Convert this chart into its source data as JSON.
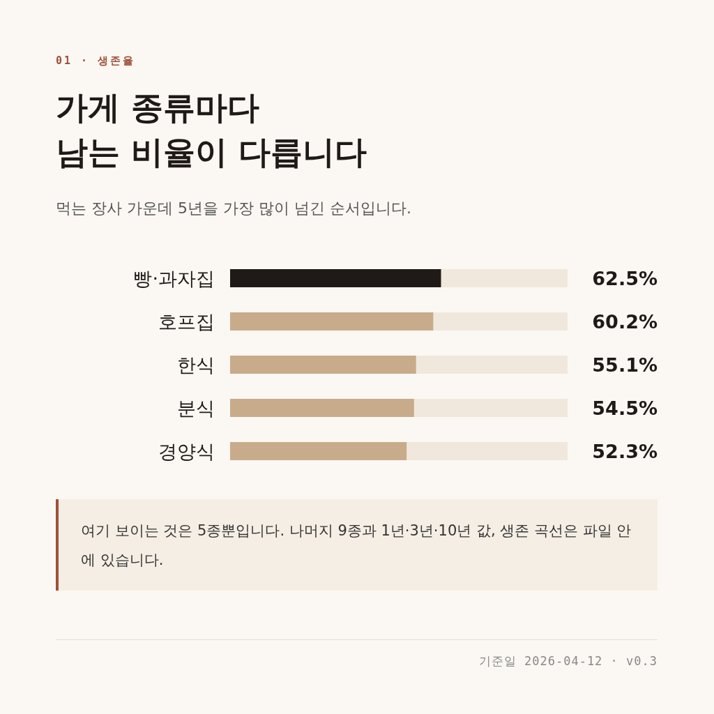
{
  "chart_data": {
    "type": "bar",
    "orientation": "horizontal",
    "title": "가게 종류마다\n남는 비율이 다릅니다",
    "subtitle": "먹는 장사 가운데 5년을 가장 많이 넘긴 순서입니다.",
    "categories": [
      "빵·과자집",
      "호프집",
      "한식",
      "분식",
      "경양식"
    ],
    "values": [
      62.5,
      60.2,
      55.1,
      54.5,
      52.3
    ],
    "value_labels": [
      "62.5%",
      "60.2%",
      "55.1%",
      "54.5%",
      "52.3%"
    ],
    "colors": [
      "#1f1a17",
      "#c8ab8a",
      "#c8ab8a",
      "#c8ab8a",
      "#c8ab8a"
    ],
    "xlim": [
      0,
      100
    ],
    "annotations": [
      "01 · 생존율",
      "여기 보이는 것은 5종뿐입니다. 나머지 9종과 1년·3년·10년 값, 생존 곡선은 파일 안에 있습니다.",
      "기준일 2026-04-12 · v0.3"
    ]
  }
}
